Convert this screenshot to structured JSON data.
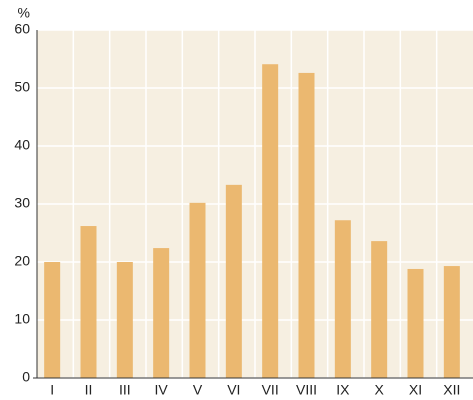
{
  "chart_data": {
    "type": "bar",
    "y_label": "%",
    "categories": [
      "I",
      "II",
      "III",
      "IV",
      "V",
      "VI",
      "VII",
      "VIII",
      "IX",
      "X",
      "XI",
      "XII"
    ],
    "values": [
      20,
      26.2,
      20,
      22.4,
      30.2,
      33.3,
      54.1,
      52.6,
      27.2,
      23.6,
      18.8,
      19.3
    ],
    "color": "#ebb870",
    "ylim": [
      0,
      60
    ],
    "yticks": [
      0,
      10,
      20,
      30,
      40,
      50,
      60
    ],
    "grid": true
  }
}
